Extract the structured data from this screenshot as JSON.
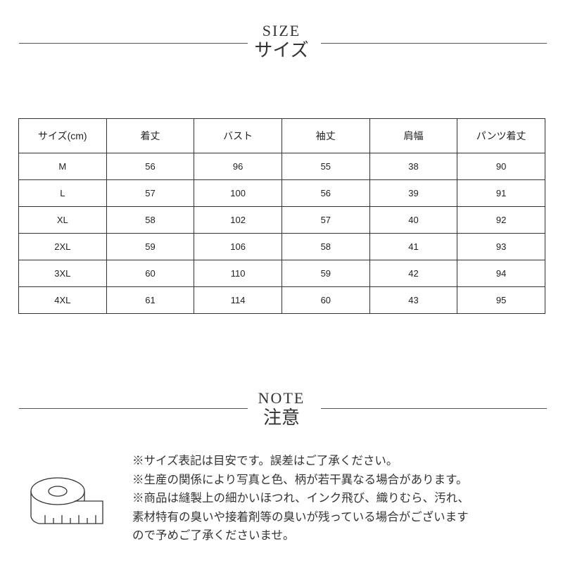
{
  "size_section": {
    "title_en": "SIZE",
    "title_ja": "サイズ"
  },
  "size_table": {
    "headers": [
      "サイズ(cm)",
      "着丈",
      "バスト",
      "袖丈",
      "肩幅",
      "パンツ着丈"
    ],
    "rows": [
      [
        "M",
        "56",
        "96",
        "55",
        "38",
        "90"
      ],
      [
        "L",
        "57",
        "100",
        "56",
        "39",
        "91"
      ],
      [
        "XL",
        "58",
        "102",
        "57",
        "40",
        "92"
      ],
      [
        "2XL",
        "59",
        "106",
        "58",
        "41",
        "93"
      ],
      [
        "3XL",
        "60",
        "110",
        "59",
        "42",
        "94"
      ],
      [
        "4XL",
        "61",
        "114",
        "60",
        "43",
        "95"
      ]
    ]
  },
  "note_section": {
    "title_en": "NOTE",
    "title_ja": "注意",
    "icon": "tape-measure-icon",
    "lines": [
      "※サイズ表記は目安です。誤差はご了承ください。",
      "※生産の関係により写真と色、柄が若干異なる場合があります。",
      "※商品は縫製上の細かいほつれ、インク飛び、織りむら、汚れ、",
      "素材特有の臭いや接着剤等の臭いが残っている場合がございます",
      "ので予めご了承くださいませ。"
    ]
  }
}
